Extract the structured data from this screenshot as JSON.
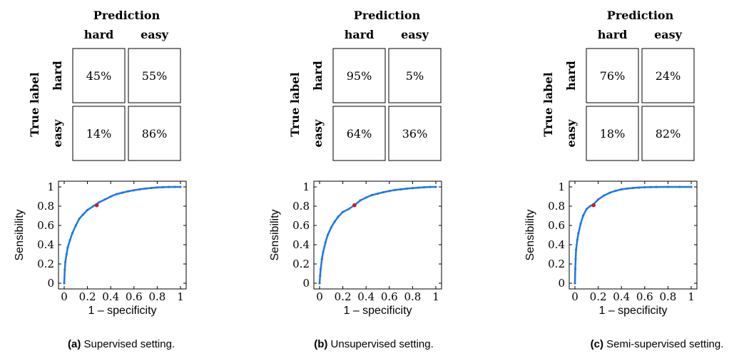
{
  "chart_data": [
    {
      "type": "table",
      "panel": "a",
      "col_title": "Prediction",
      "row_title": "True label",
      "col_labels": [
        "hard",
        "easy"
      ],
      "row_labels": [
        "hard",
        "easy"
      ],
      "cells": [
        [
          "45%",
          "55%"
        ],
        [
          "14%",
          "86%"
        ]
      ]
    },
    {
      "type": "line",
      "panel": "a",
      "xlabel": "1 – specificity",
      "ylabel": "Sensibility",
      "xlim": [
        0,
        1
      ],
      "ylim": [
        0,
        1
      ],
      "xticks": [
        "0",
        "0.2",
        "0.4",
        "0.6",
        "0.8",
        "1"
      ],
      "yticks": [
        "0",
        "0.2",
        "0.4",
        "0.6",
        "0.8",
        "1"
      ],
      "series": [
        {
          "color": "#1f77e8",
          "x": [
            0,
            0.005,
            0.01,
            0.02,
            0.03,
            0.05,
            0.07,
            0.1,
            0.13,
            0.16,
            0.2,
            0.25,
            0.3,
            0.35,
            0.4,
            0.45,
            0.5,
            0.55,
            0.6,
            0.65,
            0.7,
            0.75,
            0.8,
            0.85,
            0.9,
            0.95,
            1
          ],
          "y": [
            0,
            0.14,
            0.22,
            0.3,
            0.37,
            0.45,
            0.52,
            0.6,
            0.67,
            0.71,
            0.76,
            0.8,
            0.84,
            0.87,
            0.9,
            0.925,
            0.94,
            0.955,
            0.965,
            0.975,
            0.983,
            0.989,
            0.994,
            0.997,
            0.999,
            1.0,
            1.0
          ]
        }
      ],
      "highlight": {
        "x": 0.28,
        "y": 0.81,
        "color": "#d6132a"
      }
    },
    {
      "type": "table",
      "panel": "b",
      "col_title": "Prediction",
      "row_title": "True label",
      "col_labels": [
        "hard",
        "easy"
      ],
      "row_labels": [
        "hard",
        "easy"
      ],
      "cells": [
        [
          "95%",
          "5%"
        ],
        [
          "64%",
          "36%"
        ]
      ]
    },
    {
      "type": "line",
      "panel": "b",
      "xlabel": "1 – specificity",
      "ylabel": "Sensibility",
      "xlim": [
        0,
        1
      ],
      "ylim": [
        0,
        1
      ],
      "xticks": [
        "0",
        "0.2",
        "0.4",
        "0.6",
        "0.8",
        "1"
      ],
      "yticks": [
        "0",
        "0.2",
        "0.4",
        "0.6",
        "0.8",
        "1"
      ],
      "series": [
        {
          "color": "#1f77e8",
          "x": [
            0,
            0.005,
            0.01,
            0.02,
            0.03,
            0.05,
            0.07,
            0.1,
            0.13,
            0.16,
            0.2,
            0.25,
            0.3,
            0.35,
            0.4,
            0.45,
            0.5,
            0.55,
            0.6,
            0.65,
            0.7,
            0.75,
            0.8,
            0.85,
            0.9,
            0.95,
            1
          ],
          "y": [
            0,
            0.08,
            0.15,
            0.25,
            0.32,
            0.42,
            0.5,
            0.58,
            0.64,
            0.69,
            0.74,
            0.77,
            0.81,
            0.86,
            0.89,
            0.915,
            0.93,
            0.945,
            0.958,
            0.968,
            0.975,
            0.982,
            0.988,
            0.992,
            0.996,
            0.999,
            1.0
          ]
        }
      ],
      "highlight": {
        "x": 0.3,
        "y": 0.81,
        "color": "#d6132a"
      }
    },
    {
      "type": "table",
      "panel": "c",
      "col_title": "Prediction",
      "row_title": "True label",
      "col_labels": [
        "hard",
        "easy"
      ],
      "row_labels": [
        "hard",
        "easy"
      ],
      "cells": [
        [
          "76%",
          "24%"
        ],
        [
          "18%",
          "82%"
        ]
      ]
    },
    {
      "type": "line",
      "panel": "c",
      "xlabel": "1 – specificity",
      "ylabel": "Sensibility",
      "xlim": [
        0,
        1
      ],
      "ylim": [
        0,
        1
      ],
      "xticks": [
        "0",
        "0.2",
        "0.4",
        "0.6",
        "0.8",
        "1"
      ],
      "yticks": [
        "0",
        "0.2",
        "0.4",
        "0.6",
        "0.8",
        "1"
      ],
      "series": [
        {
          "color": "#1f77e8",
          "x": [
            0,
            0.003,
            0.006,
            0.01,
            0.02,
            0.03,
            0.05,
            0.07,
            0.1,
            0.13,
            0.16,
            0.2,
            0.25,
            0.3,
            0.35,
            0.4,
            0.45,
            0.5,
            0.55,
            0.6,
            0.65,
            0.7,
            0.8,
            0.9,
            1
          ],
          "y": [
            0,
            0.15,
            0.25,
            0.35,
            0.45,
            0.52,
            0.62,
            0.7,
            0.77,
            0.8,
            0.82,
            0.87,
            0.91,
            0.94,
            0.96,
            0.975,
            0.983,
            0.989,
            0.993,
            0.996,
            0.998,
            0.999,
            1.0,
            1.0,
            1.0
          ]
        }
      ],
      "highlight": {
        "x": 0.16,
        "y": 0.81,
        "color": "#d6132a"
      }
    }
  ],
  "captions": [
    {
      "tag": "(a)",
      "text": " Supervised setting."
    },
    {
      "tag": "(b)",
      "text": " Unsupervised setting."
    },
    {
      "tag": "(c)",
      "text": " Semi-supervised setting."
    }
  ]
}
